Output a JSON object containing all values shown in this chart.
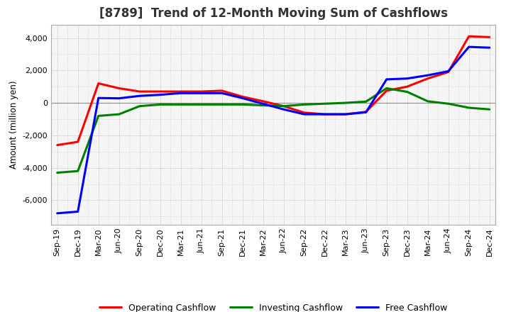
{
  "title": "[8789]  Trend of 12-Month Moving Sum of Cashflows",
  "ylabel": "Amount (million yen)",
  "x_labels": [
    "Sep-19",
    "Dec-19",
    "Mar-20",
    "Jun-20",
    "Sep-20",
    "Dec-20",
    "Mar-21",
    "Jun-21",
    "Sep-21",
    "Dec-21",
    "Mar-22",
    "Jun-22",
    "Sep-22",
    "Dec-22",
    "Mar-23",
    "Jun-23",
    "Sep-23",
    "Dec-23",
    "Mar-24",
    "Jun-24",
    "Sep-24",
    "Dec-24"
  ],
  "operating_cashflow": [
    -2600,
    -2400,
    1200,
    900,
    700,
    700,
    700,
    700,
    750,
    380,
    100,
    -200,
    -600,
    -700,
    -700,
    -550,
    750,
    1000,
    1500,
    1900,
    4100,
    4050
  ],
  "investing_cashflow": [
    -4300,
    -4200,
    -800,
    -700,
    -200,
    -100,
    -100,
    -100,
    -100,
    -100,
    -150,
    -200,
    -100,
    -50,
    0,
    80,
    900,
    680,
    100,
    -50,
    -300,
    -400
  ],
  "free_cashflow": [
    -6800,
    -6700,
    300,
    280,
    430,
    500,
    600,
    600,
    600,
    290,
    -55,
    -400,
    -700,
    -700,
    -700,
    -580,
    1450,
    1500,
    1700,
    1950,
    3450,
    3400
  ],
  "operating_color": "#ff0000",
  "investing_color": "#008000",
  "free_color": "#0000ff",
  "ylim": [
    -7500,
    4800
  ],
  "yticks": [
    -6000,
    -4000,
    -2000,
    0,
    2000,
    4000
  ],
  "background_color": "#ffffff",
  "plot_bg_color": "#f5f5f5",
  "grid_color": "#999999",
  "title_fontsize": 12,
  "legend_labels": [
    "Operating Cashflow",
    "Investing Cashflow",
    "Free Cashflow"
  ],
  "line_width": 2.2
}
